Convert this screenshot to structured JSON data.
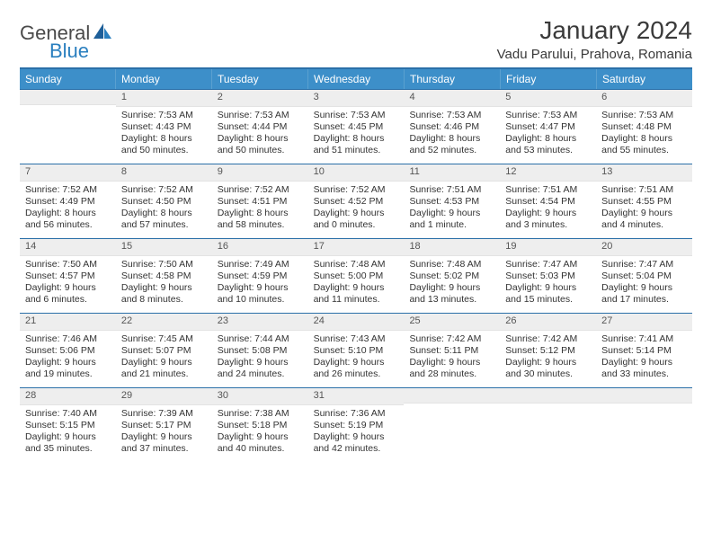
{
  "brand": {
    "general": "General",
    "blue": "Blue"
  },
  "title": "January 2024",
  "location": "Vadu Parului, Prahova, Romania",
  "colors": {
    "header_bg": "#3d8fc9",
    "header_border_top": "#2a6fa8",
    "numband_bg": "#eeeeee",
    "text": "#333333",
    "brand_gray": "#4a4a4a",
    "brand_blue": "#2a7fbf"
  },
  "day_names": [
    "Sunday",
    "Monday",
    "Tuesday",
    "Wednesday",
    "Thursday",
    "Friday",
    "Saturday"
  ],
  "weeks": [
    [
      {
        "num": "",
        "sunrise": "",
        "sunset": "",
        "daylight": ""
      },
      {
        "num": "1",
        "sunrise": "Sunrise: 7:53 AM",
        "sunset": "Sunset: 4:43 PM",
        "daylight": "Daylight: 8 hours and 50 minutes."
      },
      {
        "num": "2",
        "sunrise": "Sunrise: 7:53 AM",
        "sunset": "Sunset: 4:44 PM",
        "daylight": "Daylight: 8 hours and 50 minutes."
      },
      {
        "num": "3",
        "sunrise": "Sunrise: 7:53 AM",
        "sunset": "Sunset: 4:45 PM",
        "daylight": "Daylight: 8 hours and 51 minutes."
      },
      {
        "num": "4",
        "sunrise": "Sunrise: 7:53 AM",
        "sunset": "Sunset: 4:46 PM",
        "daylight": "Daylight: 8 hours and 52 minutes."
      },
      {
        "num": "5",
        "sunrise": "Sunrise: 7:53 AM",
        "sunset": "Sunset: 4:47 PM",
        "daylight": "Daylight: 8 hours and 53 minutes."
      },
      {
        "num": "6",
        "sunrise": "Sunrise: 7:53 AM",
        "sunset": "Sunset: 4:48 PM",
        "daylight": "Daylight: 8 hours and 55 minutes."
      }
    ],
    [
      {
        "num": "7",
        "sunrise": "Sunrise: 7:52 AM",
        "sunset": "Sunset: 4:49 PM",
        "daylight": "Daylight: 8 hours and 56 minutes."
      },
      {
        "num": "8",
        "sunrise": "Sunrise: 7:52 AM",
        "sunset": "Sunset: 4:50 PM",
        "daylight": "Daylight: 8 hours and 57 minutes."
      },
      {
        "num": "9",
        "sunrise": "Sunrise: 7:52 AM",
        "sunset": "Sunset: 4:51 PM",
        "daylight": "Daylight: 8 hours and 58 minutes."
      },
      {
        "num": "10",
        "sunrise": "Sunrise: 7:52 AM",
        "sunset": "Sunset: 4:52 PM",
        "daylight": "Daylight: 9 hours and 0 minutes."
      },
      {
        "num": "11",
        "sunrise": "Sunrise: 7:51 AM",
        "sunset": "Sunset: 4:53 PM",
        "daylight": "Daylight: 9 hours and 1 minute."
      },
      {
        "num": "12",
        "sunrise": "Sunrise: 7:51 AM",
        "sunset": "Sunset: 4:54 PM",
        "daylight": "Daylight: 9 hours and 3 minutes."
      },
      {
        "num": "13",
        "sunrise": "Sunrise: 7:51 AM",
        "sunset": "Sunset: 4:55 PM",
        "daylight": "Daylight: 9 hours and 4 minutes."
      }
    ],
    [
      {
        "num": "14",
        "sunrise": "Sunrise: 7:50 AM",
        "sunset": "Sunset: 4:57 PM",
        "daylight": "Daylight: 9 hours and 6 minutes."
      },
      {
        "num": "15",
        "sunrise": "Sunrise: 7:50 AM",
        "sunset": "Sunset: 4:58 PM",
        "daylight": "Daylight: 9 hours and 8 minutes."
      },
      {
        "num": "16",
        "sunrise": "Sunrise: 7:49 AM",
        "sunset": "Sunset: 4:59 PM",
        "daylight": "Daylight: 9 hours and 10 minutes."
      },
      {
        "num": "17",
        "sunrise": "Sunrise: 7:48 AM",
        "sunset": "Sunset: 5:00 PM",
        "daylight": "Daylight: 9 hours and 11 minutes."
      },
      {
        "num": "18",
        "sunrise": "Sunrise: 7:48 AM",
        "sunset": "Sunset: 5:02 PM",
        "daylight": "Daylight: 9 hours and 13 minutes."
      },
      {
        "num": "19",
        "sunrise": "Sunrise: 7:47 AM",
        "sunset": "Sunset: 5:03 PM",
        "daylight": "Daylight: 9 hours and 15 minutes."
      },
      {
        "num": "20",
        "sunrise": "Sunrise: 7:47 AM",
        "sunset": "Sunset: 5:04 PM",
        "daylight": "Daylight: 9 hours and 17 minutes."
      }
    ],
    [
      {
        "num": "21",
        "sunrise": "Sunrise: 7:46 AM",
        "sunset": "Sunset: 5:06 PM",
        "daylight": "Daylight: 9 hours and 19 minutes."
      },
      {
        "num": "22",
        "sunrise": "Sunrise: 7:45 AM",
        "sunset": "Sunset: 5:07 PM",
        "daylight": "Daylight: 9 hours and 21 minutes."
      },
      {
        "num": "23",
        "sunrise": "Sunrise: 7:44 AM",
        "sunset": "Sunset: 5:08 PM",
        "daylight": "Daylight: 9 hours and 24 minutes."
      },
      {
        "num": "24",
        "sunrise": "Sunrise: 7:43 AM",
        "sunset": "Sunset: 5:10 PM",
        "daylight": "Daylight: 9 hours and 26 minutes."
      },
      {
        "num": "25",
        "sunrise": "Sunrise: 7:42 AM",
        "sunset": "Sunset: 5:11 PM",
        "daylight": "Daylight: 9 hours and 28 minutes."
      },
      {
        "num": "26",
        "sunrise": "Sunrise: 7:42 AM",
        "sunset": "Sunset: 5:12 PM",
        "daylight": "Daylight: 9 hours and 30 minutes."
      },
      {
        "num": "27",
        "sunrise": "Sunrise: 7:41 AM",
        "sunset": "Sunset: 5:14 PM",
        "daylight": "Daylight: 9 hours and 33 minutes."
      }
    ],
    [
      {
        "num": "28",
        "sunrise": "Sunrise: 7:40 AM",
        "sunset": "Sunset: 5:15 PM",
        "daylight": "Daylight: 9 hours and 35 minutes."
      },
      {
        "num": "29",
        "sunrise": "Sunrise: 7:39 AM",
        "sunset": "Sunset: 5:17 PM",
        "daylight": "Daylight: 9 hours and 37 minutes."
      },
      {
        "num": "30",
        "sunrise": "Sunrise: 7:38 AM",
        "sunset": "Sunset: 5:18 PM",
        "daylight": "Daylight: 9 hours and 40 minutes."
      },
      {
        "num": "31",
        "sunrise": "Sunrise: 7:36 AM",
        "sunset": "Sunset: 5:19 PM",
        "daylight": "Daylight: 9 hours and 42 minutes."
      },
      {
        "num": "",
        "sunrise": "",
        "sunset": "",
        "daylight": ""
      },
      {
        "num": "",
        "sunrise": "",
        "sunset": "",
        "daylight": ""
      },
      {
        "num": "",
        "sunrise": "",
        "sunset": "",
        "daylight": ""
      }
    ]
  ]
}
